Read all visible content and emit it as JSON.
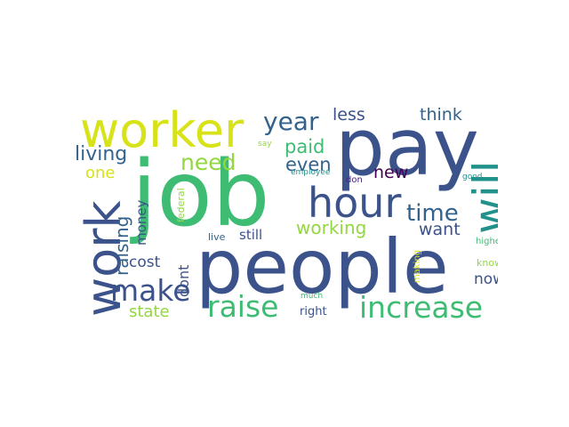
{
  "colors": {
    "background": "#ffffff",
    "green": "#3fbc73",
    "navy": "#3b528b",
    "dark_blue": "#33638d",
    "teal": "#21918c",
    "light_green": "#93d741",
    "yellow": "#d8e219",
    "deep_purple": "#440154",
    "purple": "#482475",
    "gray": "#adadad"
  },
  "words": {
    "job": "job",
    "people": "people",
    "pay": "pay",
    "worker": "worker",
    "work": "work",
    "will": "will",
    "hour": "hour",
    "increase": "increase",
    "raise": "raise",
    "make": "make",
    "year": "year",
    "need": "need",
    "living": "living",
    "time": "time",
    "working": "working",
    "less": "less",
    "think": "think",
    "paid": "paid",
    "even": "even",
    "new": "new",
    "want": "want",
    "one": "one",
    "raising": "raising",
    "cost": "cost",
    "dont": "dont",
    "state": "state",
    "money": "money",
    "still": "still",
    "now": "now",
    "right": "right",
    "live": "live",
    "federal": "federal",
    "say": "say",
    "employee": "employee",
    "don": "don",
    "good": "good",
    "higher": "higher",
    "making": "making",
    "know": "know",
    "much": "much"
  }
}
